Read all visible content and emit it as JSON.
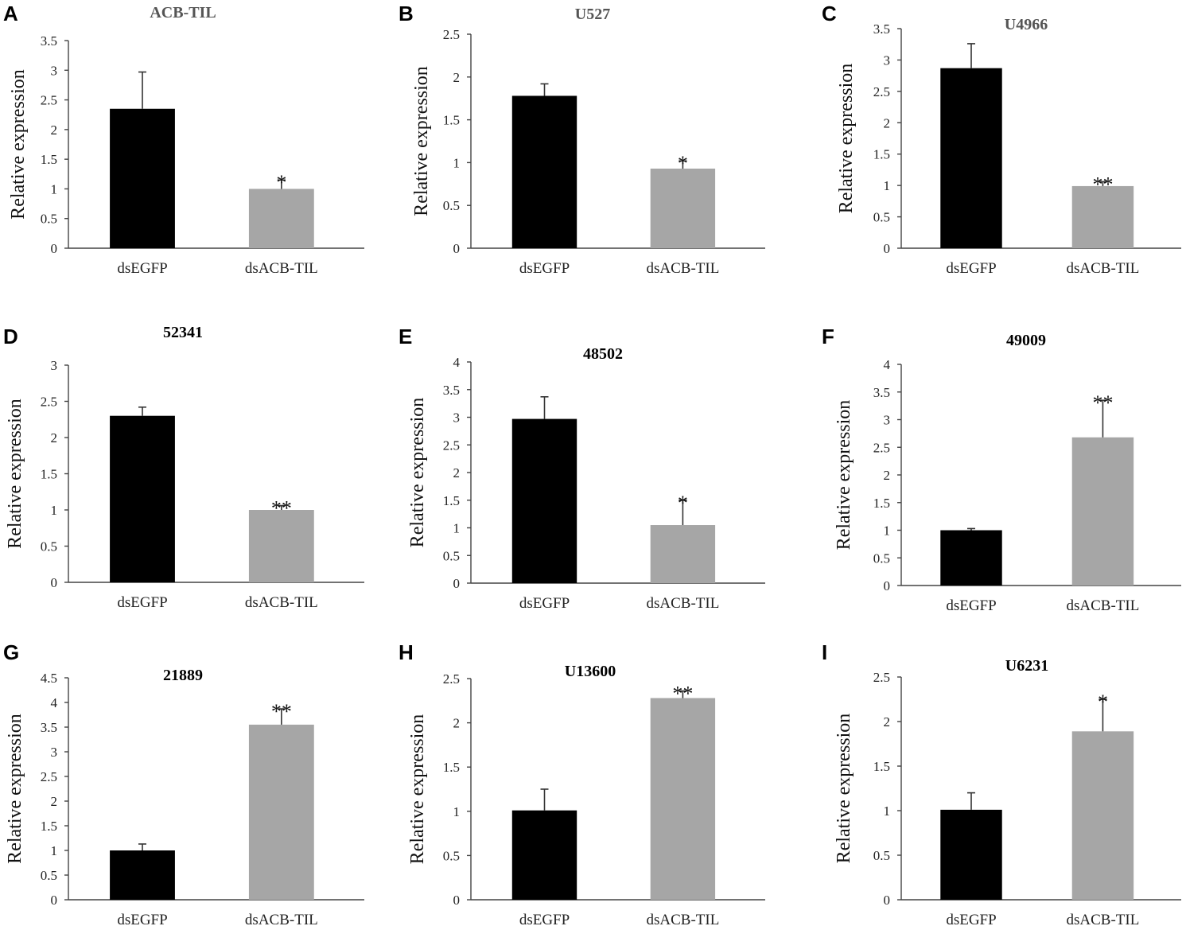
{
  "figure": {
    "description_title": "",
    "bar_colors": {
      "dsEGFP": "#000000",
      "dsACB-TIL": "#a6a6a6"
    }
  },
  "chart_data": [
    {
      "panel": "A",
      "type": "bar",
      "title": "ACB-TIL",
      "title_color": "#555555",
      "ylabel": "Relative expression",
      "categories": [
        "dsEGFP",
        "dsACB-TIL"
      ],
      "values": [
        2.35,
        1.0
      ],
      "errors": [
        0.62,
        0.15
      ],
      "significance": [
        "",
        "*"
      ],
      "ylim": [
        0,
        3.5
      ],
      "yticks": [
        "0",
        "0.5",
        "1",
        "1.5",
        "2",
        "2.5",
        "3",
        "3.5"
      ]
    },
    {
      "panel": "B",
      "type": "bar",
      "title": "U527",
      "title_color": "#555555",
      "ylabel": "Relative expression",
      "categories": [
        "dsEGFP",
        "dsACB-TIL"
      ],
      "values": [
        1.78,
        0.93
      ],
      "errors": [
        0.14,
        0.09
      ],
      "significance": [
        "",
        "*"
      ],
      "ylim": [
        0,
        2.5
      ],
      "yticks": [
        "0",
        "0.5",
        "1",
        "1.5",
        "2",
        "2.5"
      ]
    },
    {
      "panel": "C",
      "type": "bar",
      "title": "U4966",
      "title_color": "#555555",
      "ylabel": "Relative expression",
      "categories": [
        "dsEGFP",
        "dsACB-TIL"
      ],
      "values": [
        2.87,
        0.99
      ],
      "errors": [
        0.39,
        0.07
      ],
      "significance": [
        "",
        "**"
      ],
      "ylim": [
        0,
        3.5
      ],
      "yticks": [
        "0",
        "0.5",
        "1",
        "1.5",
        "2",
        "2.5",
        "3",
        "3.5"
      ]
    },
    {
      "panel": "D",
      "type": "bar",
      "title": "52341",
      "title_color": "#000000",
      "ylabel": "Relative expression",
      "categories": [
        "dsEGFP",
        "dsACB-TIL"
      ],
      "values": [
        2.3,
        1.0
      ],
      "errors": [
        0.12,
        0.06
      ],
      "significance": [
        "",
        "**"
      ],
      "ylim": [
        0,
        3
      ],
      "yticks": [
        "0",
        "0.5",
        "1",
        "1.5",
        "2",
        "2.5",
        "3"
      ]
    },
    {
      "panel": "E",
      "type": "bar",
      "title": "48502",
      "title_color": "#000000",
      "ylabel": "Relative expression",
      "categories": [
        "dsEGFP",
        "dsACB-TIL"
      ],
      "values": [
        2.97,
        1.05
      ],
      "errors": [
        0.4,
        0.45
      ],
      "significance": [
        "",
        "*"
      ],
      "ylim": [
        0,
        4
      ],
      "yticks": [
        "0",
        "0.5",
        "1",
        "1.5",
        "2",
        "2.5",
        "3",
        "3.5",
        "4"
      ]
    },
    {
      "panel": "F",
      "type": "bar",
      "title": "49009",
      "title_color": "#000000",
      "ylabel": "Relative expression",
      "categories": [
        "dsEGFP",
        "dsACB-TIL"
      ],
      "values": [
        1.0,
        2.68
      ],
      "errors": [
        0.03,
        0.67
      ],
      "significance": [
        "",
        "**"
      ],
      "ylim": [
        0,
        4
      ],
      "yticks": [
        "0",
        "0.5",
        "1",
        "1.5",
        "2",
        "2.5",
        "3",
        "3.5",
        "4"
      ]
    },
    {
      "panel": "G",
      "type": "bar",
      "title": "21889",
      "title_color": "#000000",
      "ylabel": "Relative expression",
      "categories": [
        "dsEGFP",
        "dsACB-TIL"
      ],
      "values": [
        1.0,
        3.55
      ],
      "errors": [
        0.13,
        0.32
      ],
      "significance": [
        "",
        "**"
      ],
      "ylim": [
        0,
        4.5
      ],
      "yticks": [
        "0",
        "0.5",
        "1",
        "1.5",
        "2",
        "2.5",
        "3",
        "3.5",
        "4",
        "4.5"
      ]
    },
    {
      "panel": "H",
      "type": "bar",
      "title": "U13600",
      "title_color": "#000000",
      "ylabel": "Relative expression",
      "categories": [
        "dsEGFP",
        "dsACB-TIL"
      ],
      "values": [
        1.01,
        2.28
      ],
      "errors": [
        0.24,
        0.08
      ],
      "significance": [
        "",
        "**"
      ],
      "ylim": [
        0,
        2.5
      ],
      "yticks": [
        "0",
        "0.5",
        "1",
        "1.5",
        "2",
        "2.5"
      ]
    },
    {
      "panel": "I",
      "type": "bar",
      "title": "U6231",
      "title_color": "#000000",
      "ylabel": "Relative expression",
      "categories": [
        "dsEGFP",
        "dsACB-TIL"
      ],
      "values": [
        1.01,
        1.89
      ],
      "errors": [
        0.19,
        0.36
      ],
      "significance": [
        "",
        "*"
      ],
      "ylim": [
        0,
        2.5
      ],
      "yticks": [
        "0",
        "0.5",
        "1",
        "1.5",
        "2",
        "2.5"
      ]
    }
  ]
}
